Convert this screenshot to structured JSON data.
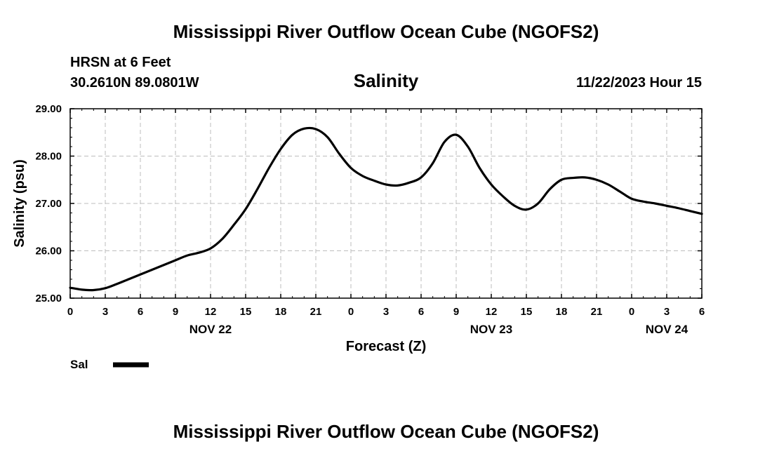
{
  "chart_data": {
    "type": "line",
    "title": "Mississippi River Outflow Ocean Cube (NGOFS2)",
    "footer_title": "Mississippi River Outflow Ocean Cube (NGOFS2)",
    "station": "HRSN at 6 Feet",
    "location": "30.2610N  89.0801W",
    "variable_title": "Salinity",
    "timestamp": "11/22/2023 Hour 15",
    "xlabel": "Forecast (Z)",
    "ylabel": "Salinity (psu)",
    "xlim": [
      0,
      54
    ],
    "ylim": [
      25.0,
      29.0
    ],
    "x_ticks": [
      0,
      3,
      6,
      9,
      12,
      15,
      18,
      21,
      24,
      27,
      30,
      33,
      36,
      39,
      42,
      45,
      48,
      51,
      54
    ],
    "x_tick_labels": [
      "0",
      "3",
      "6",
      "9",
      "12",
      "15",
      "18",
      "21",
      "0",
      "3",
      "6",
      "9",
      "12",
      "15",
      "18",
      "21",
      "0",
      "3",
      "6"
    ],
    "y_ticks": [
      25.0,
      26.0,
      27.0,
      28.0,
      29.0
    ],
    "y_tick_labels": [
      "25.00",
      "26.00",
      "27.00",
      "28.00",
      "29.00"
    ],
    "date_labels": [
      {
        "x": 12,
        "label": "NOV 22"
      },
      {
        "x": 36,
        "label": "NOV 23"
      },
      {
        "x": 51,
        "label": "NOV 24"
      }
    ],
    "grid": true,
    "legend": [
      {
        "name": "Sal",
        "color": "#000000",
        "position": "bottom-left"
      }
    ],
    "series": [
      {
        "name": "Sal",
        "color": "#000000",
        "x": [
          0,
          1,
          2,
          3,
          4,
          5,
          6,
          7,
          8,
          9,
          10,
          11,
          12,
          13,
          14,
          15,
          16,
          17,
          18,
          19,
          20,
          21,
          22,
          23,
          24,
          25,
          26,
          27,
          28,
          29,
          30,
          31,
          32,
          33,
          34,
          35,
          36,
          37,
          38,
          39,
          40,
          41,
          42,
          43,
          44,
          45,
          46,
          47,
          48,
          49,
          50,
          51,
          52,
          53,
          54
        ],
        "y": [
          25.22,
          25.18,
          25.17,
          25.21,
          25.3,
          25.4,
          25.5,
          25.6,
          25.7,
          25.8,
          25.9,
          25.96,
          26.05,
          26.25,
          26.55,
          26.88,
          27.3,
          27.75,
          28.15,
          28.45,
          28.58,
          28.57,
          28.4,
          28.05,
          27.75,
          27.58,
          27.48,
          27.4,
          27.38,
          27.44,
          27.55,
          27.85,
          28.3,
          28.45,
          28.2,
          27.75,
          27.4,
          27.15,
          26.95,
          26.87,
          27.0,
          27.3,
          27.5,
          27.54,
          27.55,
          27.5,
          27.4,
          27.25,
          27.1,
          27.04,
          27.0,
          26.95,
          26.9,
          26.84,
          26.78
        ]
      }
    ]
  }
}
